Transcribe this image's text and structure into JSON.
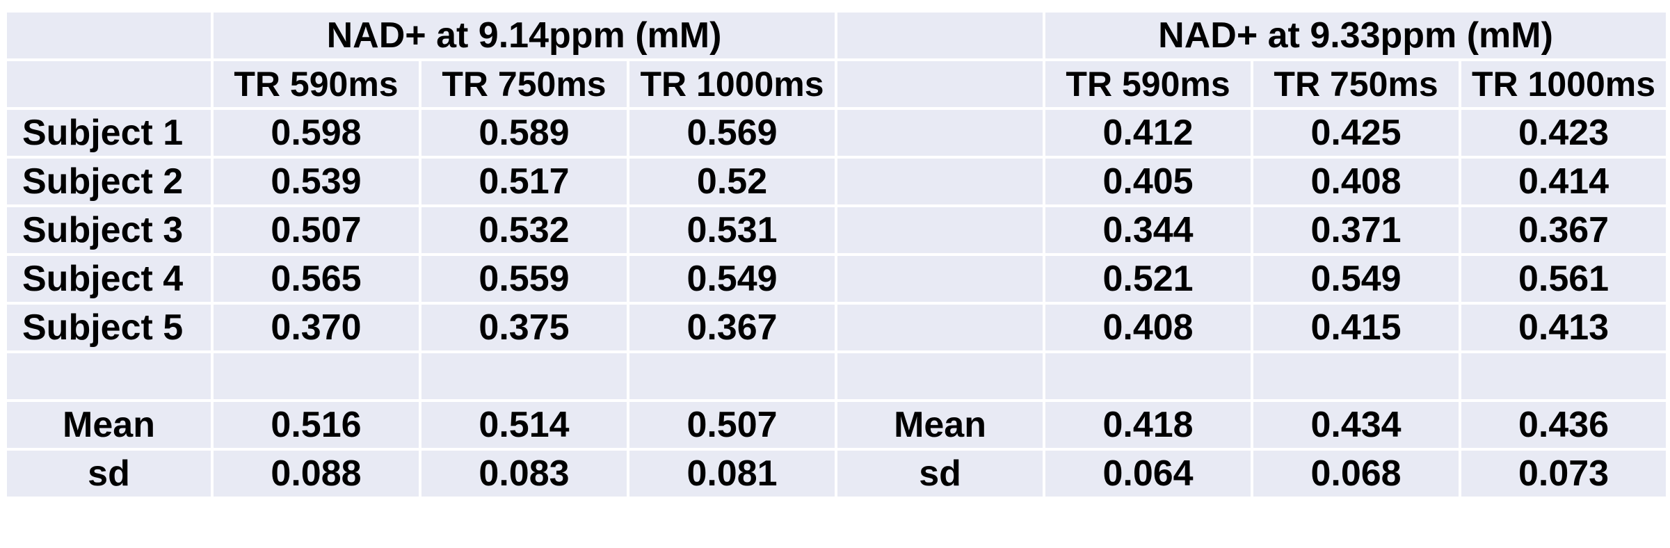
{
  "table": {
    "group_headers": [
      "NAD+  at 9.14ppm (mM)",
      "NAD+  at 9.33ppm (mM)"
    ],
    "subheaders_left": [
      "TR 590ms",
      "TR 750ms",
      "TR 1000ms"
    ],
    "subheaders_right": [
      "TR 590ms",
      "TR 750ms",
      "TR 1000ms"
    ],
    "subjects": [
      {
        "label": "Subject 1",
        "left": [
          "0.598",
          "0.589",
          "0.569"
        ],
        "right": [
          "0.412",
          "0.425",
          "0.423"
        ]
      },
      {
        "label": "Subject 2",
        "left": [
          "0.539",
          "0.517",
          "0.52"
        ],
        "right": [
          "0.405",
          "0.408",
          "0.414"
        ]
      },
      {
        "label": "Subject 3",
        "left": [
          "0.507",
          "0.532",
          "0.531"
        ],
        "right": [
          "0.344",
          "0.371",
          "0.367"
        ]
      },
      {
        "label": "Subject 4",
        "left": [
          "0.565",
          "0.559",
          "0.549"
        ],
        "right": [
          "0.521",
          "0.549",
          "0.561"
        ]
      },
      {
        "label": "Subject 5",
        "left": [
          "0.370",
          "0.375",
          "0.367"
        ],
        "right": [
          "0.408",
          "0.415",
          "0.413"
        ]
      }
    ],
    "stats": [
      {
        "label": "Mean",
        "left": [
          "0.516",
          "0.514",
          "0.507"
        ],
        "right_label": "Mean",
        "right": [
          "0.418",
          "0.434",
          "0.436"
        ]
      },
      {
        "label": "sd",
        "left": [
          "0.088",
          "0.083",
          "0.081"
        ],
        "right_label": "sd",
        "right": [
          "0.064",
          "0.068",
          "0.073"
        ]
      }
    ]
  }
}
